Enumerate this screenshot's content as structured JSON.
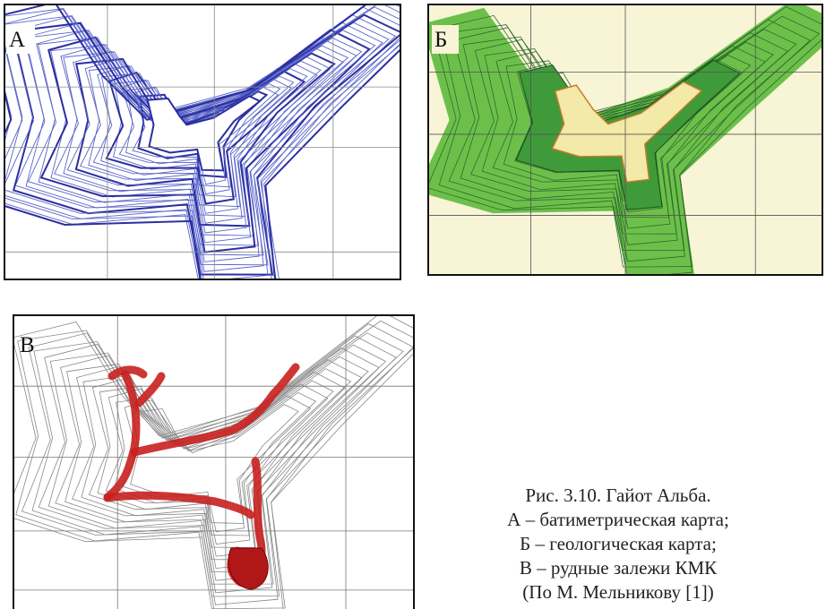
{
  "panels": [
    {
      "label": "А"
    },
    {
      "label": "Б"
    },
    {
      "label": "В"
    }
  ],
  "caption": {
    "lines": [
      "Рис. 3.10. Гайот Альба.",
      "А – батиметрическая карта;",
      "Б – геологическая карта;",
      "В – рудные залежи КМК",
      "(По М. Мельникову [1])"
    ]
  }
}
